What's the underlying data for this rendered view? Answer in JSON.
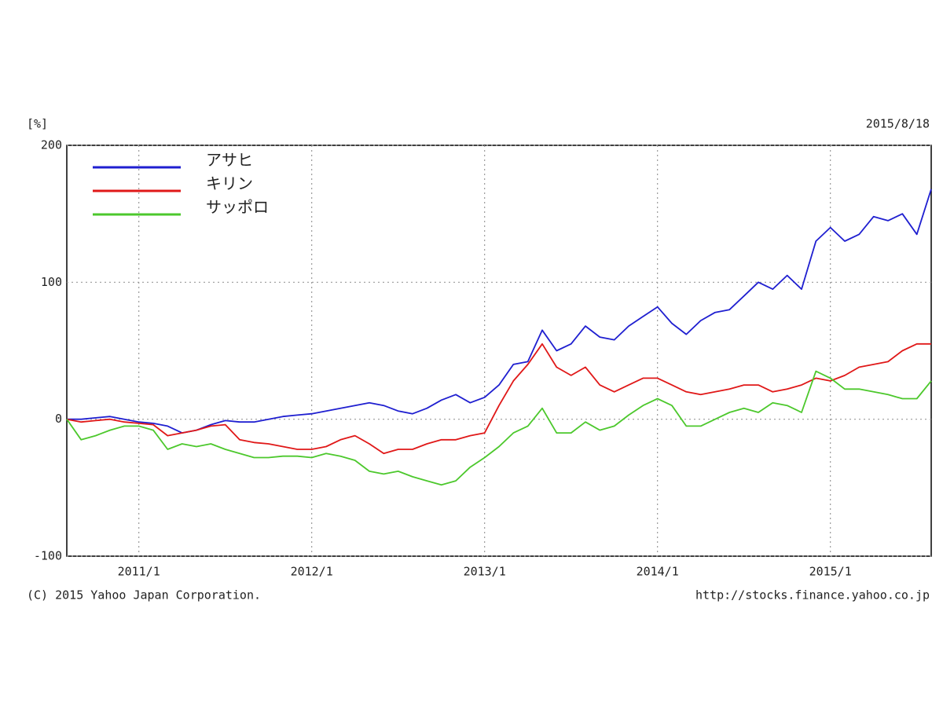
{
  "chart_data": {
    "type": "line",
    "y_label": "[%]",
    "date": "2015/8/18",
    "copyright": "(C) 2015 Yahoo Japan Corporation.",
    "source": "http://stocks.finance.yahoo.co.jp",
    "x": [
      "2010/8",
      "2010/9",
      "2010/10",
      "2010/11",
      "2010/12",
      "2011/1",
      "2011/2",
      "2011/3",
      "2011/4",
      "2011/5",
      "2011/6",
      "2011/7",
      "2011/8",
      "2011/9",
      "2011/10",
      "2011/11",
      "2011/12",
      "2012/1",
      "2012/2",
      "2012/3",
      "2012/4",
      "2012/5",
      "2012/6",
      "2012/7",
      "2012/8",
      "2012/9",
      "2012/10",
      "2012/11",
      "2012/12",
      "2013/1",
      "2013/2",
      "2013/3",
      "2013/4",
      "2013/5",
      "2013/6",
      "2013/7",
      "2013/8",
      "2013/9",
      "2013/10",
      "2013/11",
      "2013/12",
      "2014/1",
      "2014/2",
      "2014/3",
      "2014/4",
      "2014/5",
      "2014/6",
      "2014/7",
      "2014/8",
      "2014/9",
      "2014/10",
      "2014/11",
      "2014/12",
      "2015/1",
      "2015/2",
      "2015/3",
      "2015/4",
      "2015/5",
      "2015/6",
      "2015/7",
      "2015/8"
    ],
    "series": [
      {
        "name": "アサヒ",
        "color": "#1f1fd0",
        "values": [
          0,
          0,
          1,
          2,
          0,
          -2,
          -3,
          -5,
          -10,
          -8,
          -4,
          -1,
          -2,
          -2,
          0,
          2,
          3,
          4,
          6,
          8,
          10,
          12,
          10,
          6,
          4,
          8,
          14,
          18,
          12,
          16,
          25,
          40,
          42,
          65,
          50,
          55,
          68,
          60,
          58,
          68,
          75,
          82,
          70,
          62,
          72,
          78,
          80,
          90,
          100,
          95,
          105,
          95,
          130,
          140,
          130,
          135,
          148,
          145,
          150,
          135,
          168
        ]
      },
      {
        "name": "キリン",
        "color": "#e01818",
        "values": [
          0,
          -2,
          -1,
          0,
          -2,
          -3,
          -4,
          -12,
          -10,
          -8,
          -5,
          -4,
          -15,
          -17,
          -18,
          -20,
          -22,
          -22,
          -20,
          -15,
          -12,
          -18,
          -25,
          -22,
          -22,
          -18,
          -15,
          -15,
          -12,
          -10,
          10,
          28,
          40,
          55,
          38,
          32,
          38,
          25,
          20,
          25,
          30,
          30,
          25,
          20,
          18,
          20,
          22,
          25,
          25,
          20,
          22,
          25,
          30,
          28,
          32,
          38,
          40,
          42,
          50,
          55,
          55
        ]
      },
      {
        "name": "サッポロ",
        "color": "#4cc82c",
        "values": [
          0,
          -15,
          -12,
          -8,
          -5,
          -5,
          -8,
          -22,
          -18,
          -20,
          -18,
          -22,
          -25,
          -28,
          -28,
          -27,
          -27,
          -28,
          -25,
          -27,
          -30,
          -38,
          -40,
          -38,
          -42,
          -45,
          -48,
          -45,
          -35,
          -28,
          -20,
          -10,
          -5,
          8,
          -10,
          -10,
          -2,
          -8,
          -5,
          3,
          10,
          15,
          10,
          -5,
          -5,
          0,
          5,
          8,
          5,
          12,
          10,
          5,
          35,
          30,
          22,
          22,
          20,
          18,
          15,
          15,
          28
        ]
      }
    ],
    "xlim": [
      "2010/8",
      "2015/8"
    ],
    "xticks": [
      "2011/1",
      "2012/1",
      "2013/1",
      "2014/1",
      "2015/1"
    ],
    "ylim": [
      -100,
      200
    ],
    "yticks": [
      -100,
      0,
      100,
      200
    ],
    "grid": true,
    "legend": "top-left"
  }
}
